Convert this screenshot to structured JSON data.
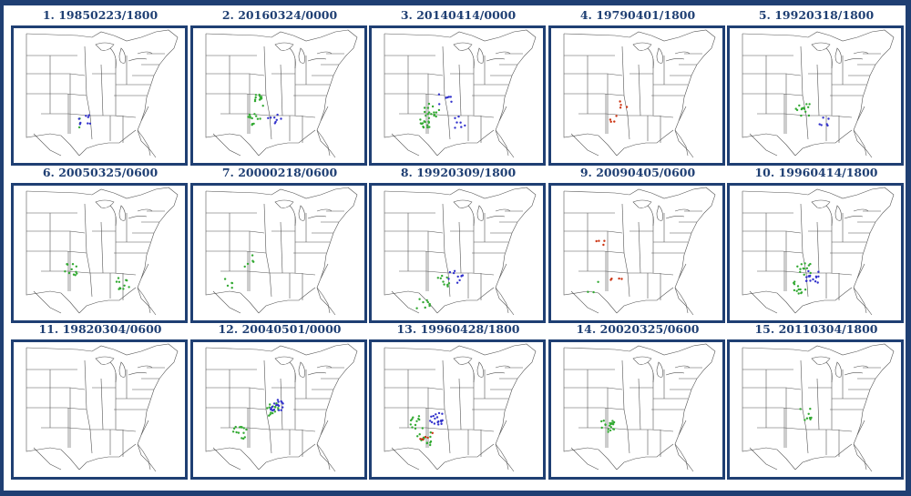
{
  "panels": [
    {
      "title": "1. 19850223/1800",
      "reports": {
        "green": 3,
        "blue": 8,
        "red": 0
      }
    },
    {
      "title": "2. 20160324/0000",
      "reports": {
        "green": 24,
        "blue": 8,
        "red": 0
      }
    },
    {
      "title": "3. 20140414/0000",
      "reports": {
        "green": 30,
        "blue": 14,
        "red": 0
      }
    },
    {
      "title": "4. 19790401/1800",
      "reports": {
        "green": 0,
        "blue": 0,
        "red": 8
      }
    },
    {
      "title": "5. 19920318/1800",
      "reports": {
        "green": 14,
        "blue": 6,
        "red": 0
      }
    },
    {
      "title": "6. 20050325/0600",
      "reports": {
        "green": 22,
        "blue": 0,
        "red": 0
      }
    },
    {
      "title": "7. 20000218/0600",
      "reports": {
        "green": 10,
        "blue": 0,
        "red": 0
      }
    },
    {
      "title": "8. 19920309/1800",
      "reports": {
        "green": 18,
        "blue": 10,
        "red": 0
      }
    },
    {
      "title": "9. 20090405/0600",
      "reports": {
        "green": 3,
        "blue": 0,
        "red": 8
      }
    },
    {
      "title": "10. 19960414/1800",
      "reports": {
        "green": 24,
        "blue": 16,
        "red": 0
      }
    },
    {
      "title": "11. 19820304/0600",
      "reports": {
        "green": 0,
        "blue": 0,
        "red": 0
      }
    },
    {
      "title": "12. 20040501/0000",
      "reports": {
        "green": 30,
        "blue": 18,
        "red": 0
      }
    },
    {
      "title": "13. 19960428/1800",
      "reports": {
        "green": 24,
        "blue": 18,
        "red": 6
      }
    },
    {
      "title": "14. 20020325/0600",
      "reports": {
        "green": 20,
        "blue": 0,
        "red": 0
      }
    },
    {
      "title": "15. 20110304/1800",
      "reports": {
        "green": 8,
        "blue": 0,
        "red": 0
      }
    }
  ],
  "colors": {
    "frame": "#1f3f73",
    "title": "#1f3f73",
    "border_lines": "#555555",
    "green": "#33aa33",
    "blue": "#3333cc",
    "red": "#cc3311"
  }
}
